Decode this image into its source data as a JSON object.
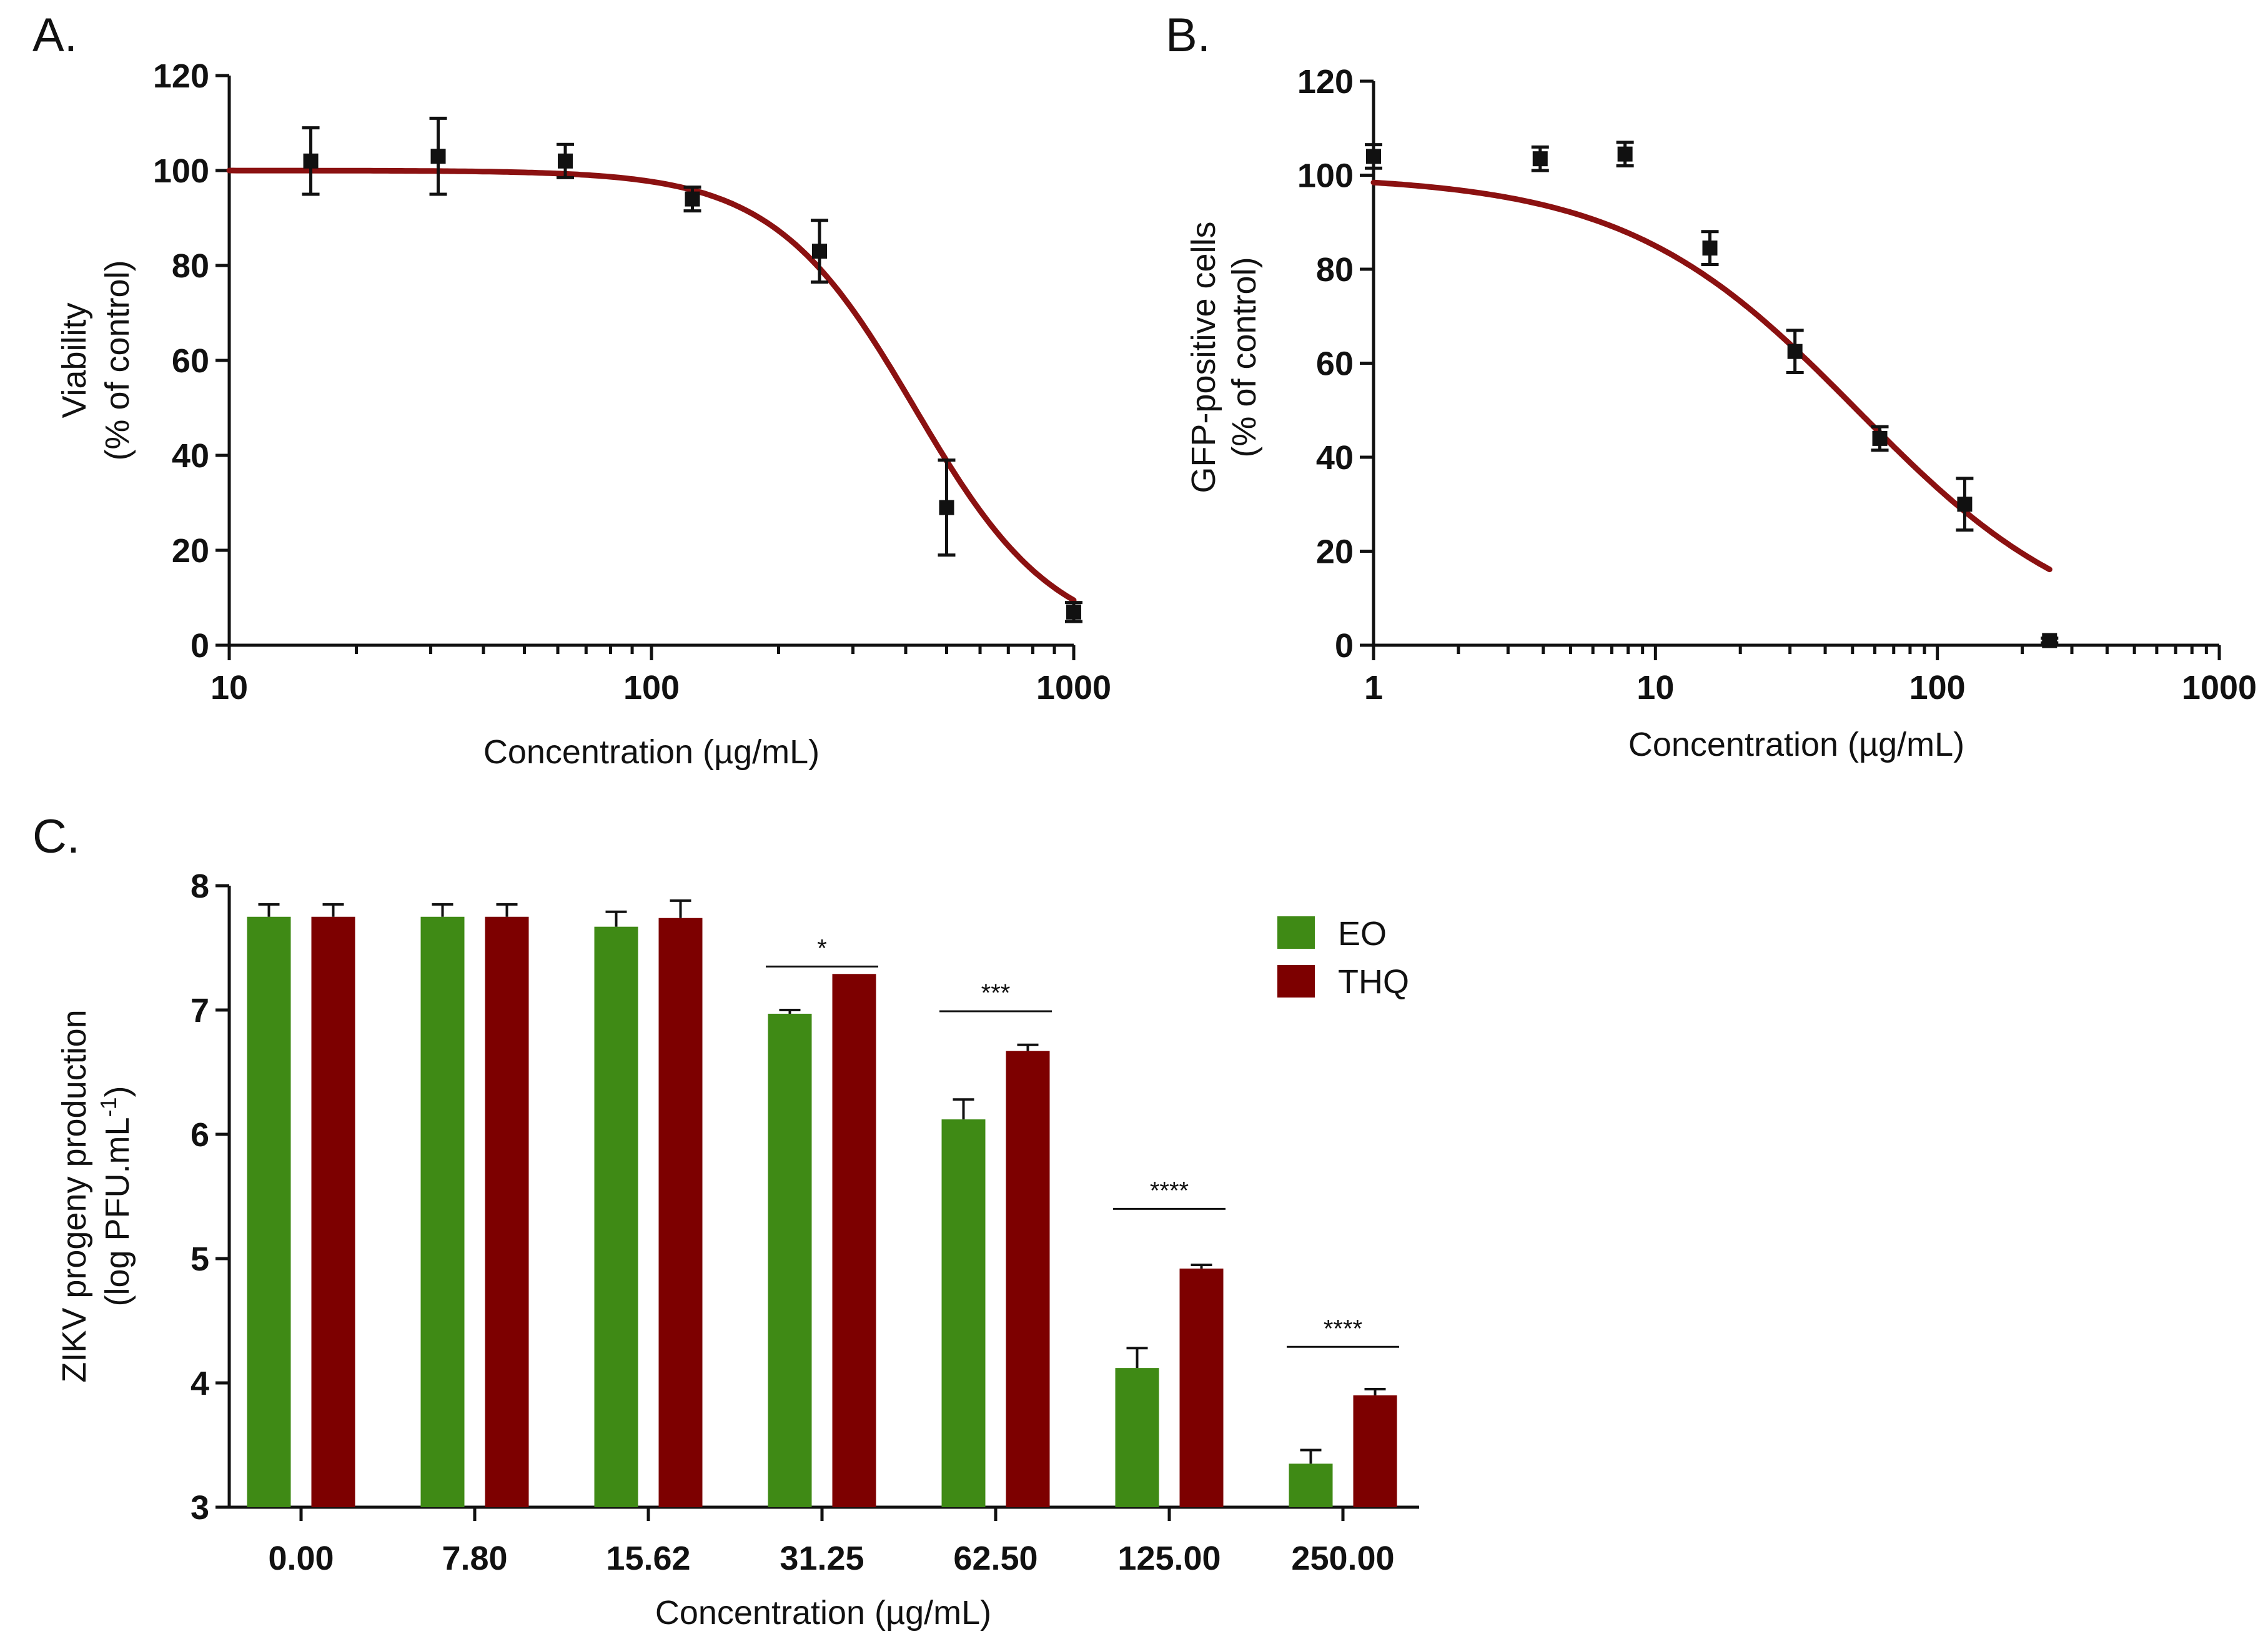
{
  "colors": {
    "green": "#3f8a15",
    "darkred": "#7d0000",
    "fit": "#8b1111",
    "ink": "#111111"
  },
  "chart_data": [
    {
      "panel": "A.",
      "type": "scatter",
      "xscale": "log",
      "xlabel": "Concentration (µg/mL)",
      "ylabel_line1": "Viability",
      "ylabel_line2": "(% of control)",
      "xlim": [
        10,
        1000
      ],
      "ylim": [
        0,
        120
      ],
      "xticks": [
        10,
        100,
        1000
      ],
      "xtick_labels": [
        "10",
        "100",
        "1000"
      ],
      "yticks": [
        0,
        20,
        40,
        60,
        80,
        100,
        120
      ],
      "ytick_labels": [
        "0",
        "20",
        "40",
        "60",
        "80",
        "100",
        "120"
      ],
      "points": [
        {
          "x": 15.6,
          "y": 102,
          "err": 7
        },
        {
          "x": 31.25,
          "y": 103,
          "err": 8
        },
        {
          "x": 62.5,
          "y": 102,
          "err": 3.5
        },
        {
          "x": 125,
          "y": 94,
          "err": 2.5
        },
        {
          "x": 250,
          "y": 83,
          "err": 6.5
        },
        {
          "x": 500,
          "y": 29,
          "err": 10
        },
        {
          "x": 1000,
          "y": 7,
          "err": 2
        }
      ],
      "fit": {
        "top": 100,
        "bottom": 0,
        "ic50": 420,
        "hill": 2.6,
        "xrange": [
          10,
          1000
        ]
      }
    },
    {
      "panel": "B.",
      "type": "scatter",
      "xscale": "log",
      "xlabel": "Concentration (µg/mL)",
      "ylabel_line1": "GFP-positive cells",
      "ylabel_line2": "(% of control)",
      "xlim": [
        1,
        1000
      ],
      "ylim": [
        0,
        120
      ],
      "xticks": [
        1,
        10,
        100,
        1000
      ],
      "xtick_labels": [
        "1",
        "10",
        "100",
        "1000"
      ],
      "yticks": [
        0,
        20,
        40,
        60,
        80,
        100,
        120
      ],
      "ytick_labels": [
        "0",
        "20",
        "40",
        "60",
        "80",
        "100",
        "120"
      ],
      "points": [
        {
          "x": 1,
          "y": 104,
          "err": 2.5
        },
        {
          "x": 3.9,
          "y": 103.5,
          "err": 2.5
        },
        {
          "x": 7.8,
          "y": 104.5,
          "err": 2.5
        },
        {
          "x": 15.6,
          "y": 84.5,
          "err": 3.5
        },
        {
          "x": 31.25,
          "y": 62.5,
          "err": 4.5
        },
        {
          "x": 62.5,
          "y": 44,
          "err": 2.5
        },
        {
          "x": 125,
          "y": 30,
          "err": 5.5
        },
        {
          "x": 250,
          "y": 1,
          "err": 0.5
        }
      ],
      "fit": {
        "top": 100,
        "bottom": 0,
        "ic50": 52,
        "hill": 1.05,
        "xrange": [
          1,
          250
        ]
      }
    },
    {
      "panel": "C.",
      "type": "bar",
      "xlabel": "Concentration (µg/mL)",
      "ylabel_line1": "ZIKV progeny production",
      "ylabel_line2_pre": "(log PFU.mL",
      "ylabel_line2_sup": "-1",
      "ylabel_line2_post": ")",
      "ylim": [
        3,
        8
      ],
      "yticks": [
        3,
        4,
        5,
        6,
        7,
        8
      ],
      "ytick_labels": [
        "3",
        "4",
        "5",
        "6",
        "7",
        "8"
      ],
      "categories": [
        "0.00",
        "7.80",
        "15.62",
        "31.25",
        "62.50",
        "125.00",
        "250.00"
      ],
      "series": [
        {
          "name": "EO",
          "color": "#3f8a15",
          "values": [
            7.75,
            7.75,
            7.67,
            6.97,
            6.12,
            4.12,
            3.35
          ],
          "errors": [
            0.1,
            0.1,
            0.12,
            0.03,
            0.16,
            0.16,
            0.11
          ]
        },
        {
          "name": "THQ",
          "color": "#7d0000",
          "values": [
            7.75,
            7.75,
            7.74,
            7.29,
            6.67,
            4.92,
            3.9
          ],
          "errors": [
            0.1,
            0.1,
            0.14,
            0.0,
            0.05,
            0.03,
            0.05
          ]
        }
      ],
      "significance": [
        {
          "category": "31.25",
          "label": "*",
          "y": 7.35
        },
        {
          "category": "62.50",
          "label": "***",
          "y": 6.99
        },
        {
          "category": "125.00",
          "label": "****",
          "y": 5.4
        },
        {
          "category": "250.00",
          "label": "****",
          "y": 4.29
        }
      ],
      "legend": [
        "EO",
        "THQ"
      ]
    }
  ]
}
